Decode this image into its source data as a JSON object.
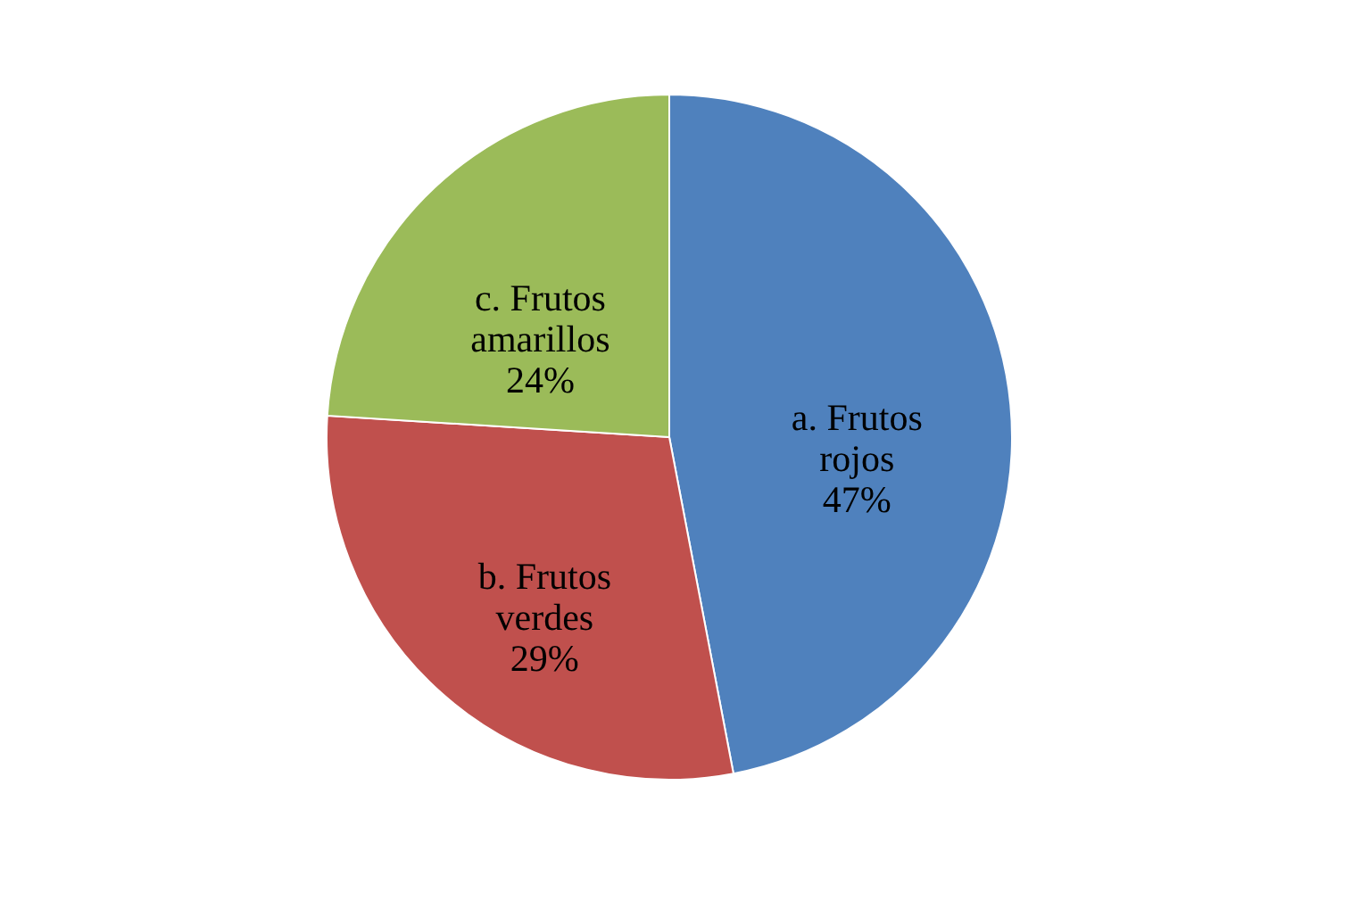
{
  "chart_data": {
    "type": "pie",
    "categories": [
      "a. Frutos rojos",
      "b. Frutos verdes",
      "c. Frutos amarillos"
    ],
    "values": [
      47,
      29,
      24
    ],
    "colors": [
      "#4f81bd",
      "#c0504d",
      "#9bbb59"
    ],
    "value_labels": [
      "47%",
      "29%",
      "24%"
    ],
    "legend": false
  }
}
